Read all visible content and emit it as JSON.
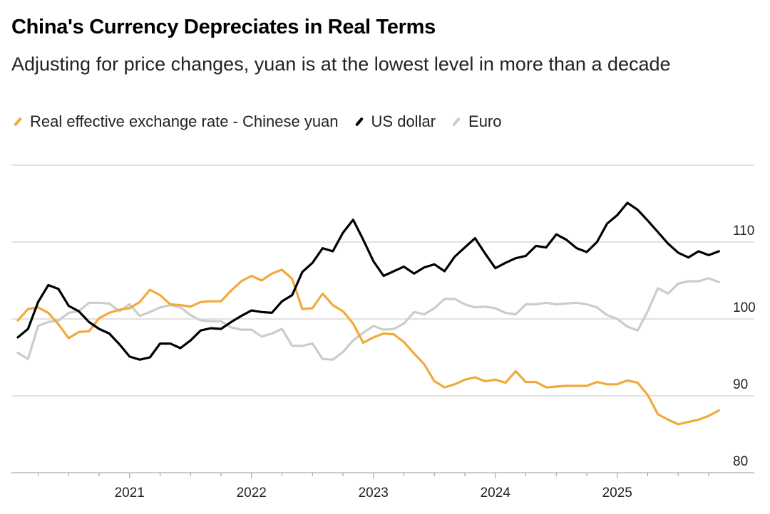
{
  "chart_data": {
    "type": "line",
    "title": "China's Currency Depreciates in Real Terms",
    "subtitle": "Adjusting for price changes, yuan is at the lowest level in more than a decade",
    "xlabel": "",
    "ylabel": "",
    "ylim": [
      80,
      120
    ],
    "yticks": [
      80,
      90,
      100,
      110
    ],
    "xticks": [
      "2021",
      "2022",
      "2023",
      "2024",
      "2025"
    ],
    "grid": true,
    "legend_position": "top-left",
    "x": [
      "2020-02",
      "2020-03",
      "2020-04",
      "2020-05",
      "2020-06",
      "2020-07",
      "2020-08",
      "2020-09",
      "2020-10",
      "2020-11",
      "2020-12",
      "2021-01",
      "2021-02",
      "2021-03",
      "2021-04",
      "2021-05",
      "2021-06",
      "2021-07",
      "2021-08",
      "2021-09",
      "2021-10",
      "2021-11",
      "2021-12",
      "2022-01",
      "2022-02",
      "2022-03",
      "2022-04",
      "2022-05",
      "2022-06",
      "2022-07",
      "2022-08",
      "2022-09",
      "2022-10",
      "2022-11",
      "2022-12",
      "2023-01",
      "2023-02",
      "2023-03",
      "2023-04",
      "2023-05",
      "2023-06",
      "2023-07",
      "2023-08",
      "2023-09",
      "2023-10",
      "2023-11",
      "2023-12",
      "2024-01",
      "2024-02",
      "2024-03",
      "2024-04",
      "2024-05",
      "2024-06",
      "2024-07",
      "2024-08",
      "2024-09",
      "2024-10",
      "2024-11",
      "2024-12",
      "2025-01",
      "2025-02",
      "2025-03",
      "2025-04",
      "2025-05",
      "2025-06",
      "2025-07",
      "2025-08",
      "2025-09",
      "2025-10",
      "2025-11"
    ],
    "series": [
      {
        "name": "Real effective exchange rate - Chinese yuan",
        "color": "#f2a93b",
        "values": [
          99.8,
          101.3,
          101.5,
          100.8,
          99.3,
          97.5,
          98.3,
          98.4,
          100.1,
          100.8,
          101.2,
          101.4,
          102.2,
          103.8,
          103.1,
          101.9,
          101.8,
          101.6,
          102.2,
          102.3,
          102.3,
          103.7,
          104.9,
          105.6,
          105.0,
          105.9,
          106.4,
          105.2,
          101.3,
          101.4,
          103.3,
          101.8,
          101.0,
          99.4,
          96.9,
          97.6,
          98.1,
          98.0,
          97.0,
          95.5,
          94.1,
          91.9,
          91.1,
          91.5,
          92.1,
          92.4,
          91.9,
          92.1,
          91.7,
          93.2,
          91.8,
          91.8,
          91.1,
          91.2,
          91.3,
          91.3,
          91.3,
          91.8,
          91.5,
          91.5,
          92.0,
          91.7,
          90.1,
          87.6,
          86.9,
          86.3,
          86.6,
          86.9,
          87.4,
          88.1
        ]
      },
      {
        "name": "US dollar",
        "color": "#000000",
        "values": [
          97.6,
          98.7,
          102.2,
          104.4,
          103.9,
          101.7,
          101.0,
          99.6,
          98.7,
          98.1,
          96.7,
          95.1,
          94.7,
          95.0,
          96.8,
          96.8,
          96.2,
          97.2,
          98.5,
          98.8,
          98.7,
          99.6,
          100.4,
          101.1,
          100.9,
          100.8,
          102.3,
          103.1,
          106.1,
          107.3,
          109.2,
          108.8,
          111.2,
          112.9,
          110.3,
          107.5,
          105.6,
          106.2,
          106.8,
          105.9,
          106.7,
          107.1,
          106.2,
          108.1,
          109.3,
          110.5,
          108.5,
          106.6,
          107.3,
          107.9,
          108.2,
          109.5,
          109.3,
          111.0,
          110.3,
          109.2,
          108.7,
          110.0,
          112.4,
          113.5,
          115.1,
          114.2,
          112.8,
          111.3,
          109.8,
          108.6,
          108.0,
          108.8,
          108.3,
          108.8
        ]
      },
      {
        "name": "Euro",
        "color": "#cccccc",
        "values": [
          95.6,
          94.8,
          99.1,
          99.6,
          99.8,
          100.8,
          101.0,
          102.1,
          102.1,
          102.0,
          101.0,
          101.9,
          100.4,
          100.9,
          101.5,
          101.8,
          101.5,
          100.5,
          99.8,
          99.7,
          99.7,
          98.9,
          98.6,
          98.6,
          97.7,
          98.1,
          98.7,
          96.5,
          96.5,
          96.8,
          94.8,
          94.7,
          95.7,
          97.2,
          98.2,
          99.1,
          98.6,
          98.7,
          99.4,
          100.9,
          100.6,
          101.4,
          102.6,
          102.6,
          101.9,
          101.5,
          101.6,
          101.4,
          100.8,
          100.6,
          101.9,
          101.9,
          102.1,
          101.9,
          102.0,
          102.1,
          101.9,
          101.5,
          100.5,
          100.0,
          99.0,
          98.5,
          101.0,
          104.0,
          103.3,
          104.6,
          104.9,
          104.9,
          105.3,
          104.8
        ]
      }
    ]
  }
}
